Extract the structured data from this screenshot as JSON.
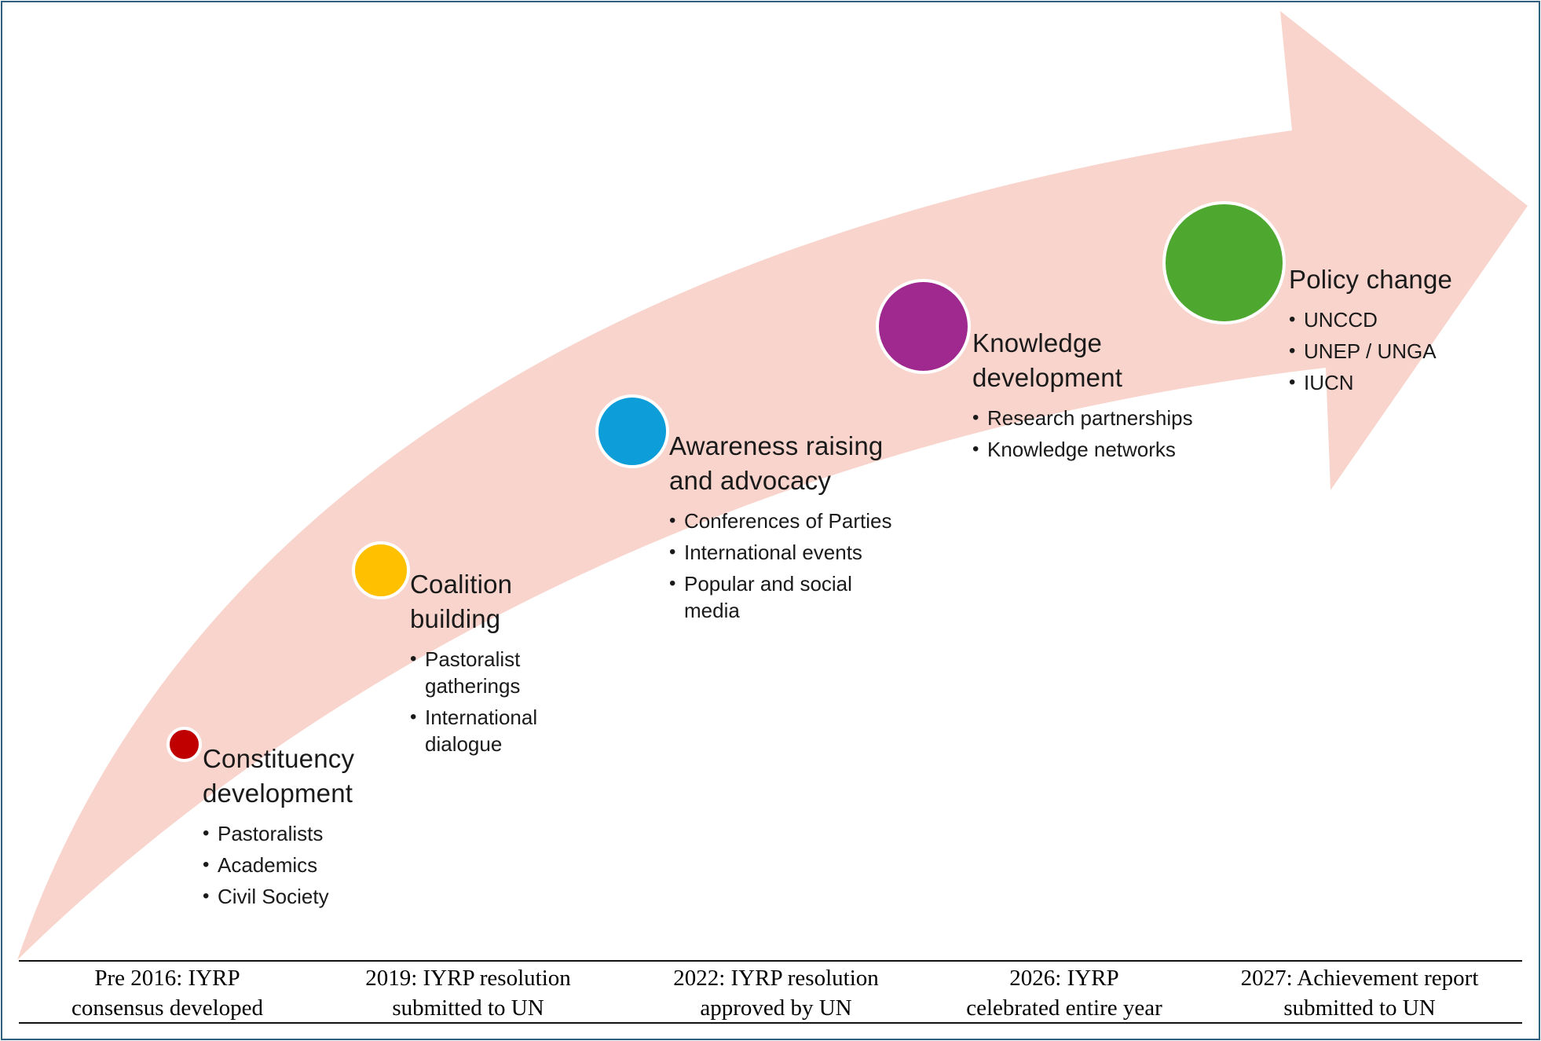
{
  "colors": {
    "arrow_fill": "#f8d4cc",
    "frame_border": "#2f5f7f",
    "constituency_dot": "#c00000",
    "coalition_dot": "#ffc000",
    "awareness_dot": "#0d9dd8",
    "knowledge_dot": "#a0298f",
    "policy_dot": "#4ea72e"
  },
  "stages": [
    {
      "title_line1": "Constituency",
      "title_line2": "development",
      "bullets": [
        "Pastoralists",
        "Academics",
        "Civil Society"
      ]
    },
    {
      "title_line1": "Coalition",
      "title_line2": "building",
      "bullets": [
        "Pastoralist gatherings",
        "International dialogue"
      ]
    },
    {
      "title_line1": "Awareness raising",
      "title_line2": "and advocacy",
      "bullets": [
        "Conferences of Parties",
        "International events",
        "Popular and social media"
      ]
    },
    {
      "title_line1": "Knowledge",
      "title_line2": "development",
      "bullets": [
        "Research partnerships",
        "Knowledge networks"
      ]
    },
    {
      "title_line1": "Policy change",
      "title_line2": "",
      "bullets": [
        "UNCCD",
        "UNEP / UNGA",
        "IUCN"
      ]
    }
  ],
  "milestones": [
    {
      "line1": "Pre 2016: IYRP",
      "line2": "consensus developed"
    },
    {
      "line1": "2019: IYRP resolution",
      "line2": "submitted to UN"
    },
    {
      "line1": "2022: IYRP resolution",
      "line2": "approved by UN"
    },
    {
      "line1": "2026: IYRP",
      "line2": "celebrated entire year"
    },
    {
      "line1": "2027: Achievement report",
      "line2": "submitted to UN"
    }
  ]
}
